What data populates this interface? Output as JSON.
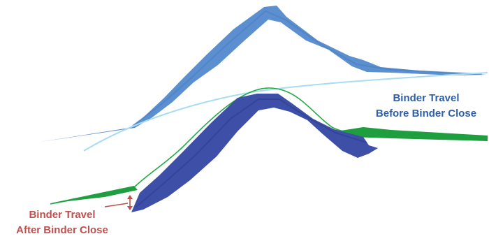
{
  "labels": {
    "before_close": {
      "line1": "Binder Travel",
      "line2": "Before Binder Close",
      "color": "#2e5fa8"
    },
    "after_close": {
      "line1": "Binder Travel",
      "line2": "After Binder Close",
      "color": "#c0504d"
    }
  },
  "colors": {
    "upper_sheet": "#5b8fd0",
    "upper_sheet_dark": "#4a7ec0",
    "light_blue_curve": "#a9dcf2",
    "lower_sheet": "#3d4fa6",
    "lower_sheet_dark": "#2f3d8f",
    "green_profile": "#22aa44",
    "green_fill": "#1e9e3e",
    "arrow": "#c0504d"
  }
}
